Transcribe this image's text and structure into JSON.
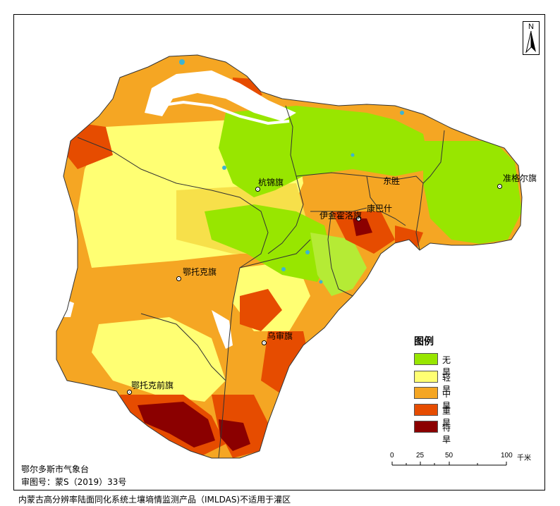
{
  "map": {
    "places": [
      {
        "name": "杭锦旗"
      },
      {
        "name": "东胜"
      },
      {
        "name": "准格尔旗"
      },
      {
        "name": "伊金霍洛旗"
      },
      {
        "name": "康巴什"
      },
      {
        "name": "鄂托克旗"
      },
      {
        "name": "乌审旗"
      },
      {
        "name": "鄂托克前旗"
      }
    ],
    "north_arrow": "N",
    "legend": {
      "title": "图例",
      "items": [
        {
          "label": "无旱",
          "color": "#98e600"
        },
        {
          "label": "轻旱",
          "color": "#ffff73"
        },
        {
          "label": "中旱",
          "color": "#f5a623"
        },
        {
          "label": "重旱",
          "color": "#e64c00"
        },
        {
          "label": "特旱",
          "color": "#8b0000"
        }
      ]
    },
    "scale": {
      "ticks": [
        "0",
        "25",
        "50",
        "100"
      ],
      "unit": "千米"
    },
    "colors": {
      "river": "#ffffff",
      "water": "#3cb4d2",
      "boundary": "#333333"
    }
  },
  "credits": {
    "agency": "鄂尔多斯市气象台",
    "approval": "审图号：蒙S（2019）33号",
    "footer": "内蒙古高分辨率陆面同化系统土壤墒情监测产品（IMLDAS)不适用于灌区"
  }
}
